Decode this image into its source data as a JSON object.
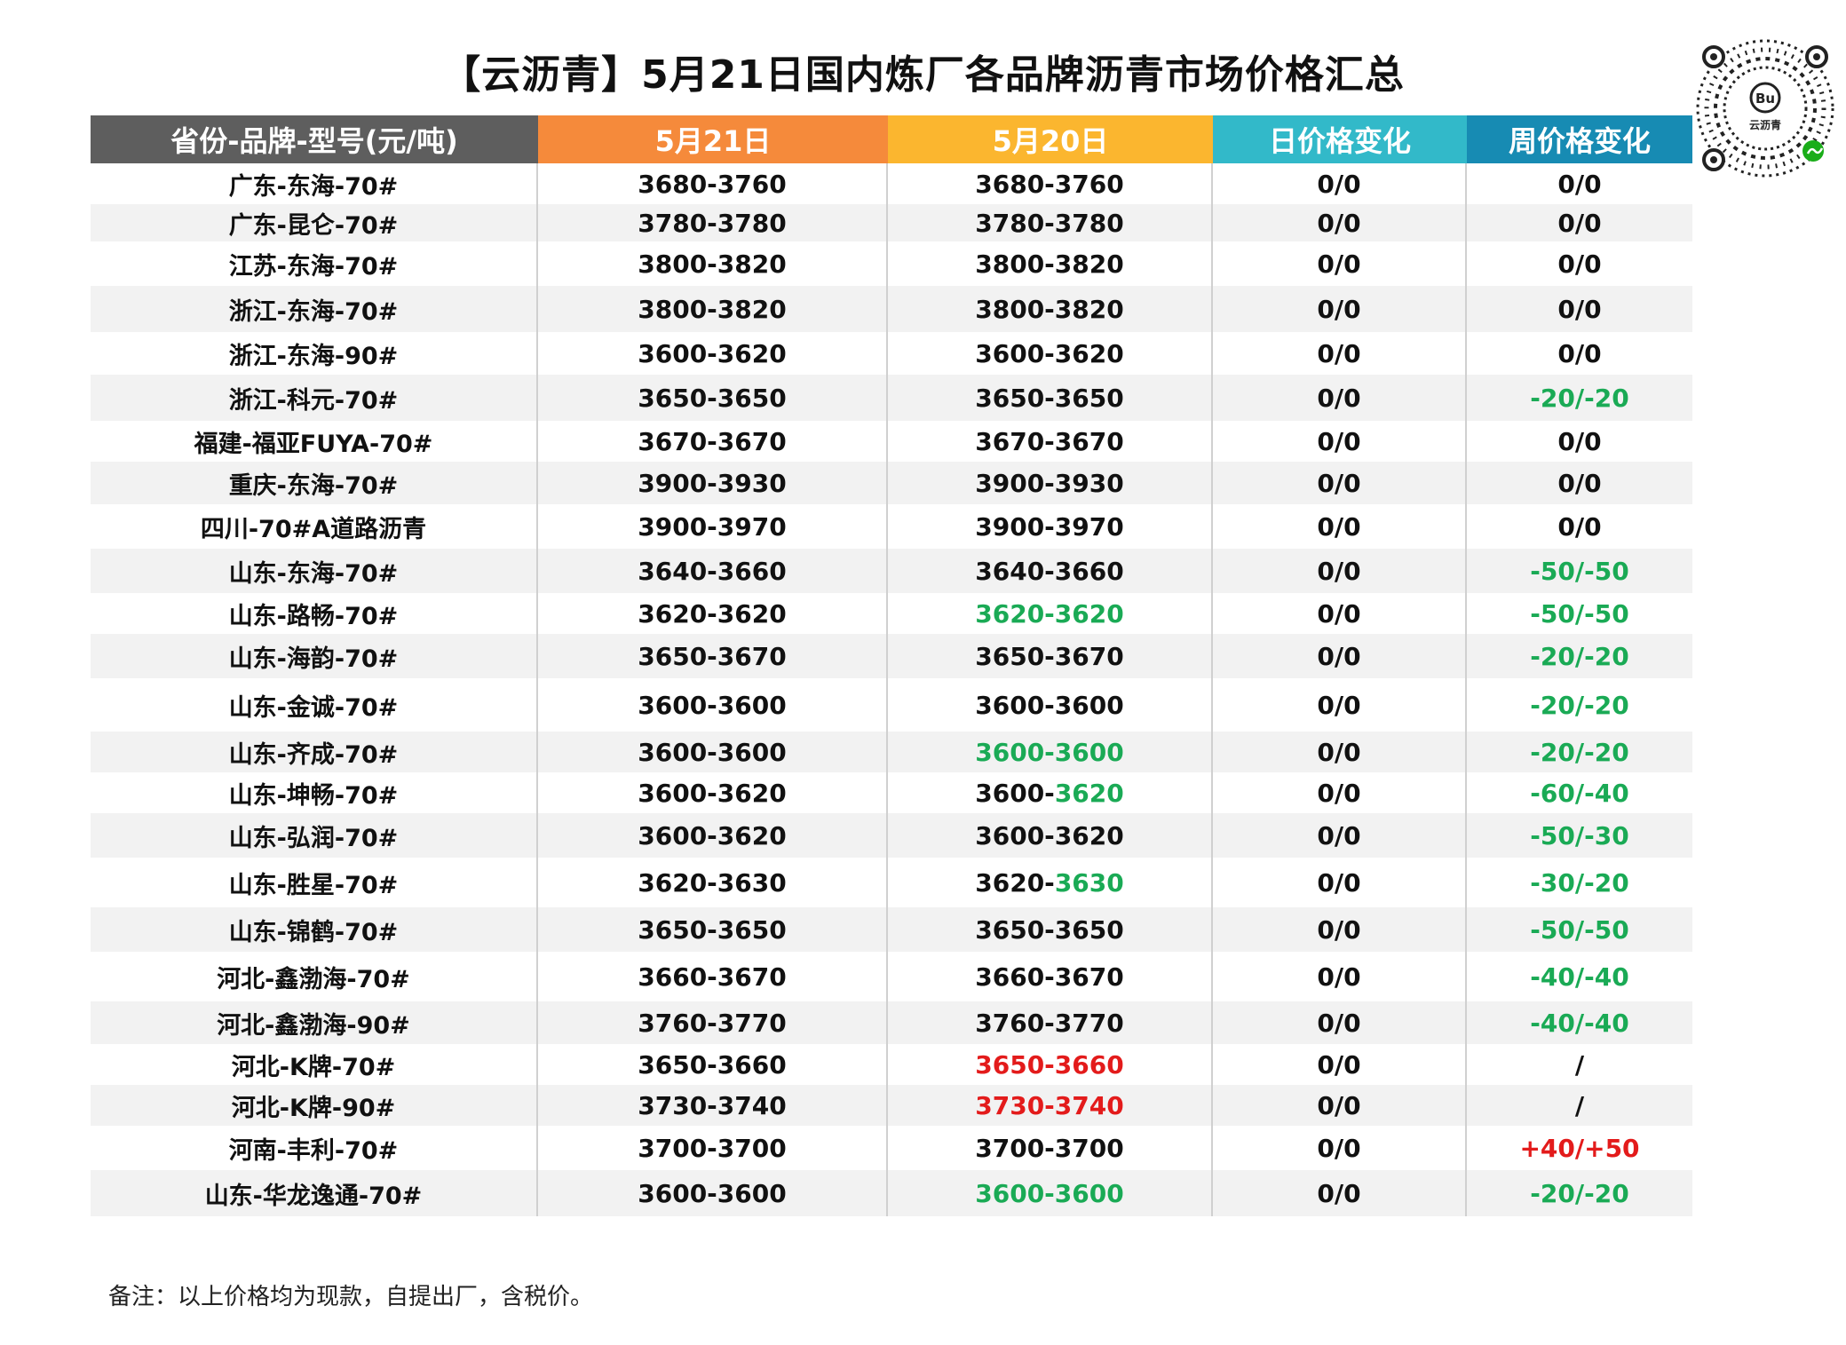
{
  "title": "【云沥青】5月21日国内炼厂各品牌沥青市场价格汇总",
  "logo_text": "云沥青",
  "colors": {
    "header_col1": "#5e5e5e",
    "header_col2": "#f58a3b",
    "header_col3": "#fbb62f",
    "header_col4": "#32b9c9",
    "header_col5": "#178bb3",
    "green": "#1aaa55",
    "red": "#e31b1b"
  },
  "headers": [
    "省份-品牌-型号(元/吨)",
    "5月21日",
    "5月20日",
    "日价格变化",
    "周价格变化"
  ],
  "rows": [
    {
      "name": "广东-东海-70#",
      "d21": "3680-3760",
      "d20a": "3680-3760",
      "d20b": "",
      "day": "0/0",
      "week": "0/0"
    },
    {
      "name": "广东-昆仑-70#",
      "d21": "3780-3780",
      "d20a": "3780-3780",
      "d20b": "",
      "day": "0/0",
      "week": "0/0"
    },
    {
      "name": "江苏-东海-70#",
      "d21": "3800-3820",
      "d20a": "3800-3820",
      "d20b": "",
      "day": "0/0",
      "week": "0/0"
    },
    {
      "name": "浙江-东海-70#",
      "d21": "3800-3820",
      "d20a": "3800-3820",
      "d20b": "",
      "day": "0/0",
      "week": "0/0"
    },
    {
      "name": "浙江-东海-90#",
      "d21": "3600-3620",
      "d20a": "3600-3620",
      "d20b": "",
      "day": "0/0",
      "week": "0/0"
    },
    {
      "name": "浙江-科元-70#",
      "d21": "3650-3650",
      "d20a": "3650-3650",
      "d20b": "",
      "day": "0/0",
      "week": "-20/-20"
    },
    {
      "name": "福建-福亚FUYA-70#",
      "d21": "3670-3670",
      "d20a": "3670-3670",
      "d20b": "",
      "day": "0/0",
      "week": "0/0"
    },
    {
      "name": "重庆-东海-70#",
      "d21": "3900-3930",
      "d20a": "3900-3930",
      "d20b": "",
      "day": "0/0",
      "week": "0/0"
    },
    {
      "name": "四川-70#A道路沥青",
      "d21": "3900-3970",
      "d20a": "3900-3970",
      "d20b": "",
      "day": "0/0",
      "week": "0/0"
    },
    {
      "name": "山东-东海-70#",
      "d21": "3640-3660",
      "d20a": "3640-3660",
      "d20b": "",
      "day": "0/0",
      "week": "-50/-50"
    },
    {
      "name": "山东-路畅-70#",
      "d21": "3620-3620",
      "d20a": "3620-3620",
      "d20b": "",
      "day": "0/0",
      "week": "-50/-50"
    },
    {
      "name": "山东-海韵-70#",
      "d21": "3650-3670",
      "d20a": "3650-3670",
      "d20b": "",
      "day": "0/0",
      "week": "-20/-20"
    },
    {
      "name": "山东-金诚-70#",
      "d21": "3600-3600",
      "d20a": "3600-3600",
      "d20b": "",
      "day": "0/0",
      "week": "-20/-20"
    },
    {
      "name": "山东-齐成-70#",
      "d21": "3600-3600",
      "d20a": "3600-3600",
      "d20b": "",
      "day": "0/0",
      "week": "-20/-20"
    },
    {
      "name": "山东-坤畅-70#",
      "d21": "3600-3620",
      "d20a": "3600-",
      "d20b": "3620",
      "day": "0/0",
      "week": "-60/-40"
    },
    {
      "name": "山东-弘润-70#",
      "d21": "3600-3620",
      "d20a": "3600-3620",
      "d20b": "",
      "day": "0/0",
      "week": "-50/-30"
    },
    {
      "name": "山东-胜星-70#",
      "d21": "3620-3630",
      "d20a": "3620-",
      "d20b": "3630",
      "day": "0/0",
      "week": "-30/-20"
    },
    {
      "name": "山东-锦鹤-70#",
      "d21": "3650-3650",
      "d20a": "3650-3650",
      "d20b": "",
      "day": "0/0",
      "week": "-50/-50"
    },
    {
      "name": "河北-鑫渤海-70#",
      "d21": "3660-3670",
      "d20a": "3660-3670",
      "d20b": "",
      "day": "0/0",
      "week": "-40/-40"
    },
    {
      "name": "河北-鑫渤海-90#",
      "d21": "3760-3770",
      "d20a": "3760-3770",
      "d20b": "",
      "day": "0/0",
      "week": "-40/-40"
    },
    {
      "name": "河北-K牌-70#",
      "d21": "3650-3660",
      "d20a": "3650-3660",
      "d20b": "",
      "day": "0/0",
      "week": "/"
    },
    {
      "name": "河北-K牌-90#",
      "d21": "3730-3740",
      "d20a": "3730-3740",
      "d20b": "",
      "day": "0/0",
      "week": "/"
    },
    {
      "name": "河南-丰利-70#",
      "d21": "3700-3700",
      "d20a": "3700-3700",
      "d20b": "",
      "day": "0/0",
      "week": "+40/+50"
    },
    {
      "name": "山东-华龙逸通-70#",
      "d21": "3600-3600",
      "d20a": "3600-3600",
      "d20b": "",
      "day": "0/0",
      "week": "-20/-20"
    }
  ],
  "note": "备注：以上价格均为现款，自提出厂，含税价。"
}
